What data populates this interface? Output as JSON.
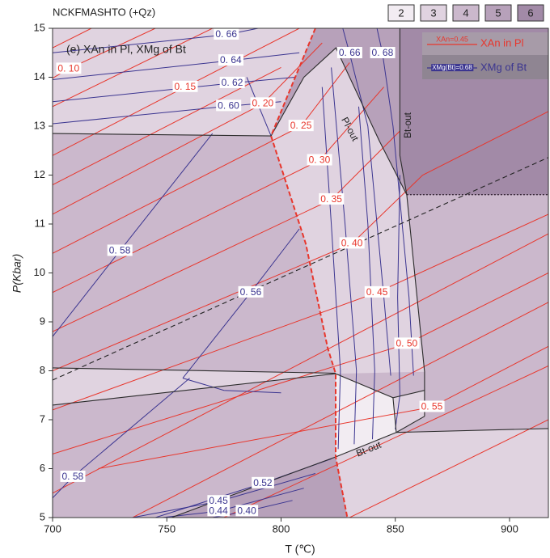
{
  "chart_data": {
    "type": "phase-diagram",
    "title": "NCKFMASHTO (+Qz)",
    "panel_label": "(e) XAn in Pl, XMg of Bt",
    "xlabel": "T (℃)",
    "ylabel": "P(Kbar)",
    "xlim": [
      700,
      917
    ],
    "ylim": [
      5,
      15
    ],
    "xticks": [
      700,
      750,
      800,
      850,
      900
    ],
    "yticks": [
      5,
      6,
      7,
      8,
      9,
      10,
      11,
      12,
      13,
      14,
      15
    ],
    "shades": [
      {
        "value": 2,
        "color": "#f2ecf2"
      },
      {
        "value": 3,
        "color": "#e0d3e0"
      },
      {
        "value": 4,
        "color": "#cbb8cc"
      },
      {
        "value": 5,
        "color": "#b7a1ba"
      },
      {
        "value": 6,
        "color": "#a28aa7"
      }
    ],
    "background_shade": 4,
    "fields": [
      {
        "shade": 3,
        "points": [
          [
            700,
            15
          ],
          [
            815,
            15
          ],
          [
            795.6,
            12.8
          ],
          [
            700,
            12.85
          ]
        ]
      },
      {
        "shade": 5,
        "points": [
          [
            815,
            15
          ],
          [
            852,
            15
          ],
          [
            852,
            12.4
          ],
          [
            855,
            11.6
          ],
          [
            843,
            12.7
          ],
          [
            824,
            14.6
          ],
          [
            810,
            14.0
          ],
          [
            795.6,
            12.8
          ]
        ]
      },
      {
        "shade": 3,
        "points": [
          [
            795.6,
            12.8
          ],
          [
            810,
            14.0
          ],
          [
            824,
            14.6
          ],
          [
            843,
            12.7
          ],
          [
            855,
            11.6
          ],
          [
            862.8,
            7.98
          ],
          [
            823.9,
            7.94
          ],
          [
            820.4,
            8.47
          ],
          [
            810.8,
            10.6
          ]
        ]
      },
      {
        "shade": 6,
        "points": [
          [
            852,
            15
          ],
          [
            917,
            15
          ],
          [
            917,
            11.6
          ],
          [
            855,
            11.6
          ],
          [
            852,
            12.4
          ]
        ]
      },
      {
        "shade": 3,
        "points": [
          [
            700,
            8.06
          ],
          [
            823.9,
            7.95
          ],
          [
            700,
            7.3
          ]
        ]
      },
      {
        "shade": 2,
        "points": [
          [
            823.9,
            7.94
          ],
          [
            849,
            7.45
          ],
          [
            850.4,
            6.74
          ],
          [
            823.9,
            6.24
          ]
        ]
      },
      {
        "shade": 3,
        "points": [
          [
            849,
            7.45
          ],
          [
            862.8,
            7.6
          ],
          [
            862.8,
            7.07
          ],
          [
            850.4,
            6.74
          ]
        ]
      },
      {
        "shade": 3,
        "points": [
          [
            823.9,
            6.24
          ],
          [
            850.4,
            6.74
          ],
          [
            917,
            6.82
          ],
          [
            917,
            5
          ],
          [
            829,
            5
          ]
        ]
      },
      {
        "shade": 5,
        "points": [
          [
            752,
            5
          ],
          [
            823.9,
            6.24
          ],
          [
            829,
            5
          ]
        ]
      }
    ],
    "an_color": "#e8362c",
    "an_isopleths": [
      {
        "label": "0. 10",
        "points": [
          [
            700,
            13.98
          ],
          [
            707,
            14.17
          ],
          [
            745,
            15.0
          ]
        ]
      },
      {
        "label": "0. 15",
        "points": [
          [
            700,
            12.4
          ],
          [
            758,
            13.8
          ],
          [
            808,
            15.0
          ]
        ]
      },
      {
        "label": "0. 20",
        "points": [
          [
            700,
            11.2
          ],
          [
            792,
            13.46
          ],
          [
            818,
            14.7
          ]
        ]
      },
      {
        "label": "0. 25",
        "points": [
          [
            700,
            10.4
          ],
          [
            808.7,
            13.0
          ],
          [
            830,
            14.3
          ]
        ]
      },
      {
        "label": "0. 30",
        "points": [
          [
            700,
            9.6
          ],
          [
            816.8,
            12.3
          ],
          [
            845,
            13.8
          ]
        ]
      },
      {
        "label": "0. 35",
        "points": [
          [
            700,
            8.8
          ],
          [
            822,
            11.5
          ],
          [
            852,
            12.9
          ]
        ]
      },
      {
        "label": "0. 40",
        "points": [
          [
            700,
            8.0
          ],
          [
            831,
            10.6
          ],
          [
            862,
            12.0
          ],
          [
            917,
            13.3
          ]
        ]
      },
      {
        "label": "0. 45",
        "points": [
          [
            700,
            7.2
          ],
          [
            842,
            9.6
          ],
          [
            917,
            11.2
          ]
        ]
      },
      {
        "label": "0. 50",
        "points": [
          [
            700,
            6.3
          ],
          [
            855,
            8.55
          ],
          [
            917,
            10.0
          ]
        ]
      },
      {
        "label": "0. 55",
        "points": [
          [
            720,
            6.0
          ],
          [
            866,
            7.26
          ],
          [
            917,
            8.5
          ]
        ]
      },
      {
        "points": [
          [
            700,
            14.6
          ],
          [
            717,
            15.0
          ]
        ]
      },
      {
        "points": [
          [
            700,
            13.4
          ],
          [
            770,
            15.0
          ]
        ]
      },
      {
        "points": [
          [
            700,
            11.8
          ],
          [
            800,
            14.2
          ]
        ]
      },
      {
        "points": [
          [
            700,
            5.5
          ],
          [
            917,
            10.8
          ]
        ]
      },
      {
        "points": [
          [
            735,
            5.0
          ],
          [
            917,
            9.4
          ]
        ]
      },
      {
        "points": [
          [
            775,
            5.0
          ],
          [
            917,
            8.1
          ]
        ]
      },
      {
        "points": [
          [
            830,
            5.0
          ],
          [
            917,
            7.0
          ]
        ]
      }
    ],
    "mg_color": "#3b3590",
    "mg_isopleths": [
      {
        "label": "0. 66",
        "points": [
          [
            700,
            14.5
          ],
          [
            776,
            14.87
          ],
          [
            790,
            15.0
          ]
        ]
      },
      {
        "label": "0. 64",
        "points": [
          [
            700,
            13.95
          ],
          [
            778,
            14.34
          ],
          [
            808,
            14.5
          ]
        ]
      },
      {
        "label": "0. 62",
        "points": [
          [
            700,
            13.5
          ],
          [
            778.6,
            13.88
          ],
          [
            806,
            14.0
          ]
        ]
      },
      {
        "label": "0. 60",
        "points": [
          [
            700,
            13.05
          ],
          [
            777,
            13.41
          ],
          [
            800,
            13.5
          ]
        ]
      },
      {
        "label": "0. 66",
        "points": [
          [
            827,
            15.0
          ],
          [
            830,
            14.49
          ],
          [
            838,
            13.0
          ],
          [
            845,
            9.5
          ],
          [
            848,
            7.9
          ]
        ]
      },
      {
        "label": "0. 68",
        "points": [
          [
            842,
            15.0
          ],
          [
            844.4,
            14.49
          ],
          [
            849,
            13.0
          ],
          [
            856,
            9.5
          ],
          [
            858,
            7.9
          ]
        ]
      },
      {
        "label": "0. 58",
        "points": [
          [
            700,
            8.7
          ],
          [
            729.4,
            10.45
          ],
          [
            770,
            12.85
          ]
        ]
      },
      {
        "label": "0. 56",
        "points": [
          [
            757,
            7.85
          ],
          [
            786.7,
            9.6
          ],
          [
            808,
            10.9
          ]
        ]
      },
      {
        "label": "0. 58",
        "points": [
          [
            700,
            5.4
          ],
          [
            708.8,
            5.83
          ],
          [
            760,
            7.85
          ]
        ]
      },
      {
        "label": "0.52",
        "points": [
          [
            745,
            5.0
          ],
          [
            792,
            5.7
          ],
          [
            822,
            6.2
          ]
        ]
      },
      {
        "label": "0.45",
        "points": [
          [
            735,
            5.0
          ],
          [
            772.6,
            5.33
          ],
          [
            815,
            5.9
          ]
        ]
      },
      {
        "label": "0.44",
        "points": [
          [
            748,
            5.0
          ],
          [
            772.6,
            5.13
          ],
          [
            810,
            5.6
          ]
        ]
      },
      {
        "label": "0.40",
        "points": [
          [
            770,
            5.0
          ],
          [
            785,
            5.13
          ],
          [
            805,
            5.35
          ]
        ]
      },
      {
        "points": [
          [
            818,
            13.8
          ],
          [
            822,
            11.0
          ],
          [
            826,
            8.0
          ],
          [
            825,
            6.4
          ]
        ]
      },
      {
        "points": [
          [
            822,
            14.2
          ],
          [
            828,
            11.0
          ],
          [
            833,
            8.0
          ],
          [
            832,
            6.5
          ]
        ]
      },
      {
        "points": [
          [
            834,
            13.4
          ],
          [
            838,
            11.0
          ],
          [
            841,
            8.0
          ],
          [
            840,
            6.6
          ]
        ]
      },
      {
        "points": [
          [
            852,
            12.0
          ],
          [
            851,
            9.5
          ],
          [
            852,
            7.5
          ],
          [
            850,
            6.8
          ]
        ]
      },
      {
        "points": [
          [
            757,
            7.85
          ],
          [
            775,
            7.6
          ],
          [
            800,
            7.55
          ]
        ]
      },
      {
        "points": [
          [
            795.6,
            12.8
          ],
          [
            785,
            14.0
          ]
        ]
      }
    ],
    "boundaries": [
      {
        "style": "solid",
        "points": [
          [
            700,
            12.85
          ],
          [
            795.6,
            12.8
          ]
        ]
      },
      {
        "style": "solid",
        "points": [
          [
            810,
            14.0
          ],
          [
            824,
            14.6
          ],
          [
            843,
            12.7
          ],
          [
            855,
            11.6
          ]
        ]
      },
      {
        "style": "solid",
        "points": [
          [
            795.6,
            12.8
          ],
          [
            810,
            14.0
          ]
        ]
      },
      {
        "style": "solid",
        "points": [
          [
            852,
            15
          ],
          [
            852,
            12.4
          ],
          [
            855,
            11.6
          ],
          [
            862.8,
            7.98
          ],
          [
            862.8,
            7.07
          ]
        ]
      },
      {
        "style": "dotted",
        "points": [
          [
            855,
            11.6
          ],
          [
            917,
            11.6
          ]
        ]
      },
      {
        "style": "dashed",
        "points": [
          [
            700,
            7.81
          ],
          [
            917,
            12.36
          ]
        ]
      },
      {
        "style": "solid",
        "points": [
          [
            700,
            8.06
          ],
          [
            823.9,
            7.95
          ]
        ]
      },
      {
        "style": "solid",
        "points": [
          [
            700,
            7.3
          ],
          [
            823.9,
            7.94
          ]
        ]
      },
      {
        "style": "solid",
        "points": [
          [
            823.9,
            7.94
          ],
          [
            849,
            7.45
          ],
          [
            862.8,
            7.6
          ]
        ]
      },
      {
        "style": "solid",
        "points": [
          [
            849,
            7.45
          ],
          [
            850.4,
            6.74
          ]
        ]
      },
      {
        "style": "solid",
        "points": [
          [
            823.9,
            6.24
          ],
          [
            850.4,
            6.74
          ],
          [
            862.8,
            7.07
          ]
        ]
      },
      {
        "style": "solid",
        "points": [
          [
            850.4,
            6.74
          ],
          [
            917,
            6.82
          ]
        ]
      },
      {
        "style": "solid",
        "points": [
          [
            752,
            5
          ],
          [
            823.9,
            6.24
          ]
        ]
      },
      {
        "style": "red-dashed",
        "points": [
          [
            815,
            15
          ],
          [
            795.6,
            12.8
          ],
          [
            810.8,
            10.6
          ],
          [
            820.4,
            8.47
          ],
          [
            823.9,
            7.94
          ],
          [
            823.9,
            6.24
          ],
          [
            829,
            5
          ]
        ]
      }
    ],
    "annotations": [
      "Pl-out",
      "Bt-out",
      "Bt-out"
    ],
    "legend": [
      {
        "sample": "XAn=0.45",
        "label": "XAn in Pl"
      },
      {
        "sample": "XMg(Bt)=0.68",
        "label": "XMg of Bt"
      }
    ]
  }
}
